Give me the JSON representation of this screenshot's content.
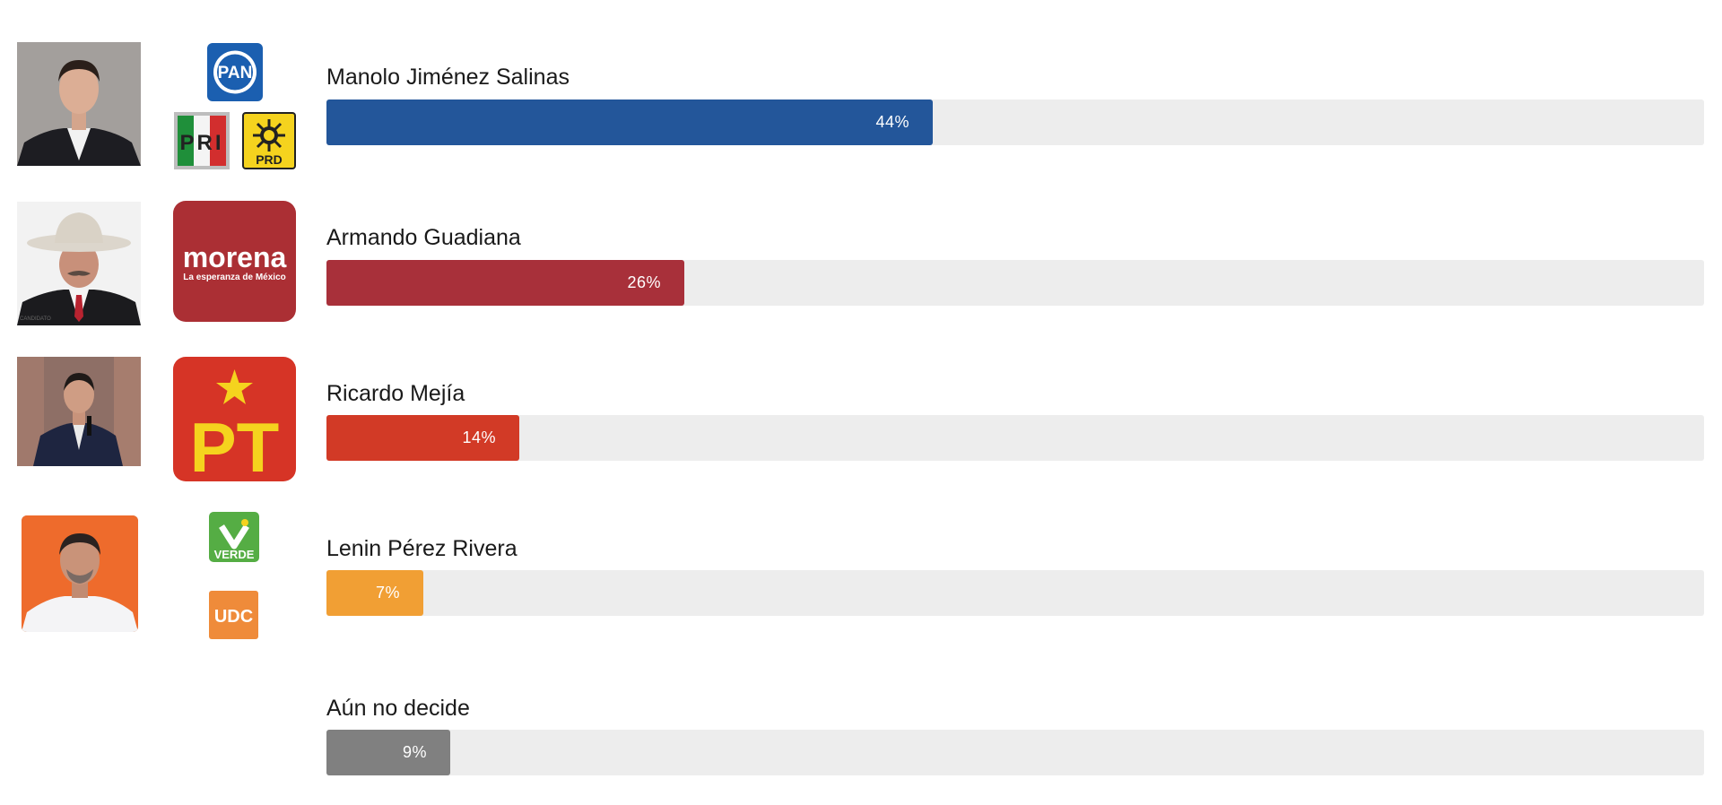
{
  "chart_data": {
    "type": "bar",
    "orientation": "horizontal",
    "categories": [
      "Manolo Jiménez Salinas",
      "Armando Guadiana",
      "Ricardo Mejía",
      "Lenin Pérez Rivera",
      "Aún no decide"
    ],
    "values": [
      44,
      26,
      14,
      7,
      9
    ],
    "value_labels": [
      "44%",
      "26%",
      "14%",
      "7%",
      "9%"
    ],
    "colors": [
      "#23569a",
      "#a8303a",
      "#d23a26",
      "#f19f34",
      "#808080"
    ],
    "track_color": "#ededed",
    "xlim": [
      0,
      100
    ]
  },
  "candidates": [
    {
      "name": "Manolo Jiménez Salinas",
      "pct_label": "44%",
      "party_logos": [
        "PAN",
        "PRI",
        "PRD"
      ]
    },
    {
      "name": "Armando Guadiana",
      "pct_label": "26%",
      "party_logos": [
        "morena"
      ],
      "logo_subtext": "La esperanza de México",
      "photo_caption": "CANDIDATO"
    },
    {
      "name": "Ricardo Mejía",
      "pct_label": "14%",
      "party_logos": [
        "PT"
      ]
    },
    {
      "name": "Lenin Pérez Rivera",
      "pct_label": "7%",
      "party_logos": [
        "VERDE",
        "UDC"
      ]
    },
    {
      "name": "Aún no decide",
      "pct_label": "9%",
      "party_logos": []
    }
  ]
}
